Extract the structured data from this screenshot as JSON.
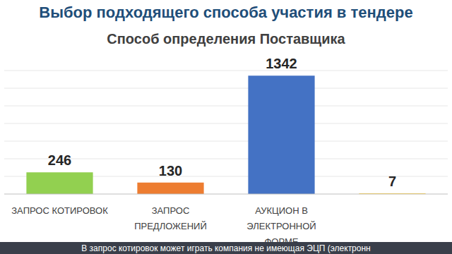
{
  "header": {
    "title": "Выбор подходящего способа участия в тендере"
  },
  "footer": {
    "text": "В запрос котировок может играть компания не имеющая ЭЦП (электронн"
  },
  "chart_data": {
    "type": "bar",
    "title": "Способ определения Поставщика",
    "categories": [
      "ЗАПРОС КОТИРОВОК",
      "ЗАПРОС ПРЕДЛОЖЕНИЙ",
      "АУКЦИОН В ЭЛЕКТРОННОЙ ФОРМЕ",
      null
    ],
    "values": [
      246,
      130,
      1342,
      7
    ],
    "colors": [
      "#92d050",
      "#ed7d31",
      "#4472c4",
      "#ffc000"
    ],
    "ylim": [
      0,
      1400
    ],
    "yticks": [
      0,
      200,
      400,
      600,
      800,
      1000,
      1200,
      1400
    ],
    "grid": true,
    "data_labels": true,
    "tick_labels": "x"
  }
}
